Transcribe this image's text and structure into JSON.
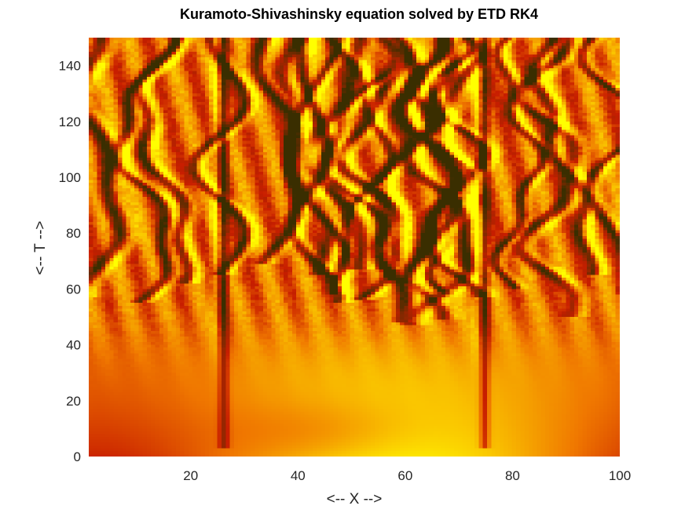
{
  "chart_data": {
    "type": "heatmap",
    "title": "Kuramoto-Shivashinsky equation solved by ETD RK4",
    "xlabel": "<-- X -->",
    "ylabel": "<-- T -->",
    "xlim": [
      1,
      100
    ],
    "ylim": [
      0,
      150
    ],
    "xticks": [
      20,
      40,
      60,
      80,
      100
    ],
    "yticks": [
      0,
      20,
      40,
      60,
      80,
      100,
      120,
      140
    ],
    "colormap": "autumn (dark red to yellow), shaded",
    "colors": {
      "dark": "#3a2e00",
      "red": "#c81e00",
      "orange": "#f07800",
      "yellow": "#ffff00"
    },
    "grid": false,
    "legend": "none",
    "stable_ridges": [
      {
        "x": 26,
        "t_start": 0
      },
      {
        "x": 75,
        "t_start": 0
      }
    ],
    "onset_of_chaos_t": 45
  }
}
